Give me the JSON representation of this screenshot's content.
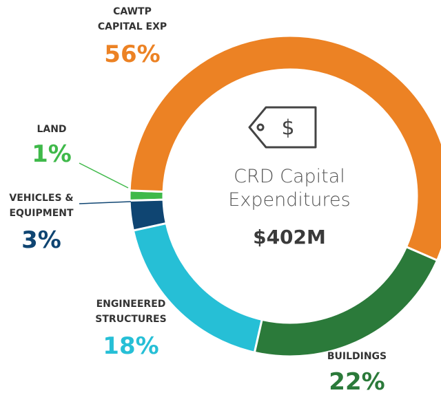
{
  "chart_data": {
    "type": "donut",
    "title": "CRD Capital Expenditures",
    "total_label": "$402M",
    "categories": [
      "CAWTP CAPITAL EXP",
      "BUILDINGS",
      "ENGINEERED STRUCTURES",
      "VEHICLES & EQUIPMENT",
      "LAND"
    ],
    "values": [
      56,
      22,
      18,
      3,
      1
    ],
    "value_labels": [
      "56%",
      "22%",
      "18%",
      "3%",
      "1%"
    ],
    "colors": [
      "#ec8224",
      "#2b7a3a",
      "#26bfd6",
      "#0f4572",
      "#3fb94a"
    ]
  }
}
